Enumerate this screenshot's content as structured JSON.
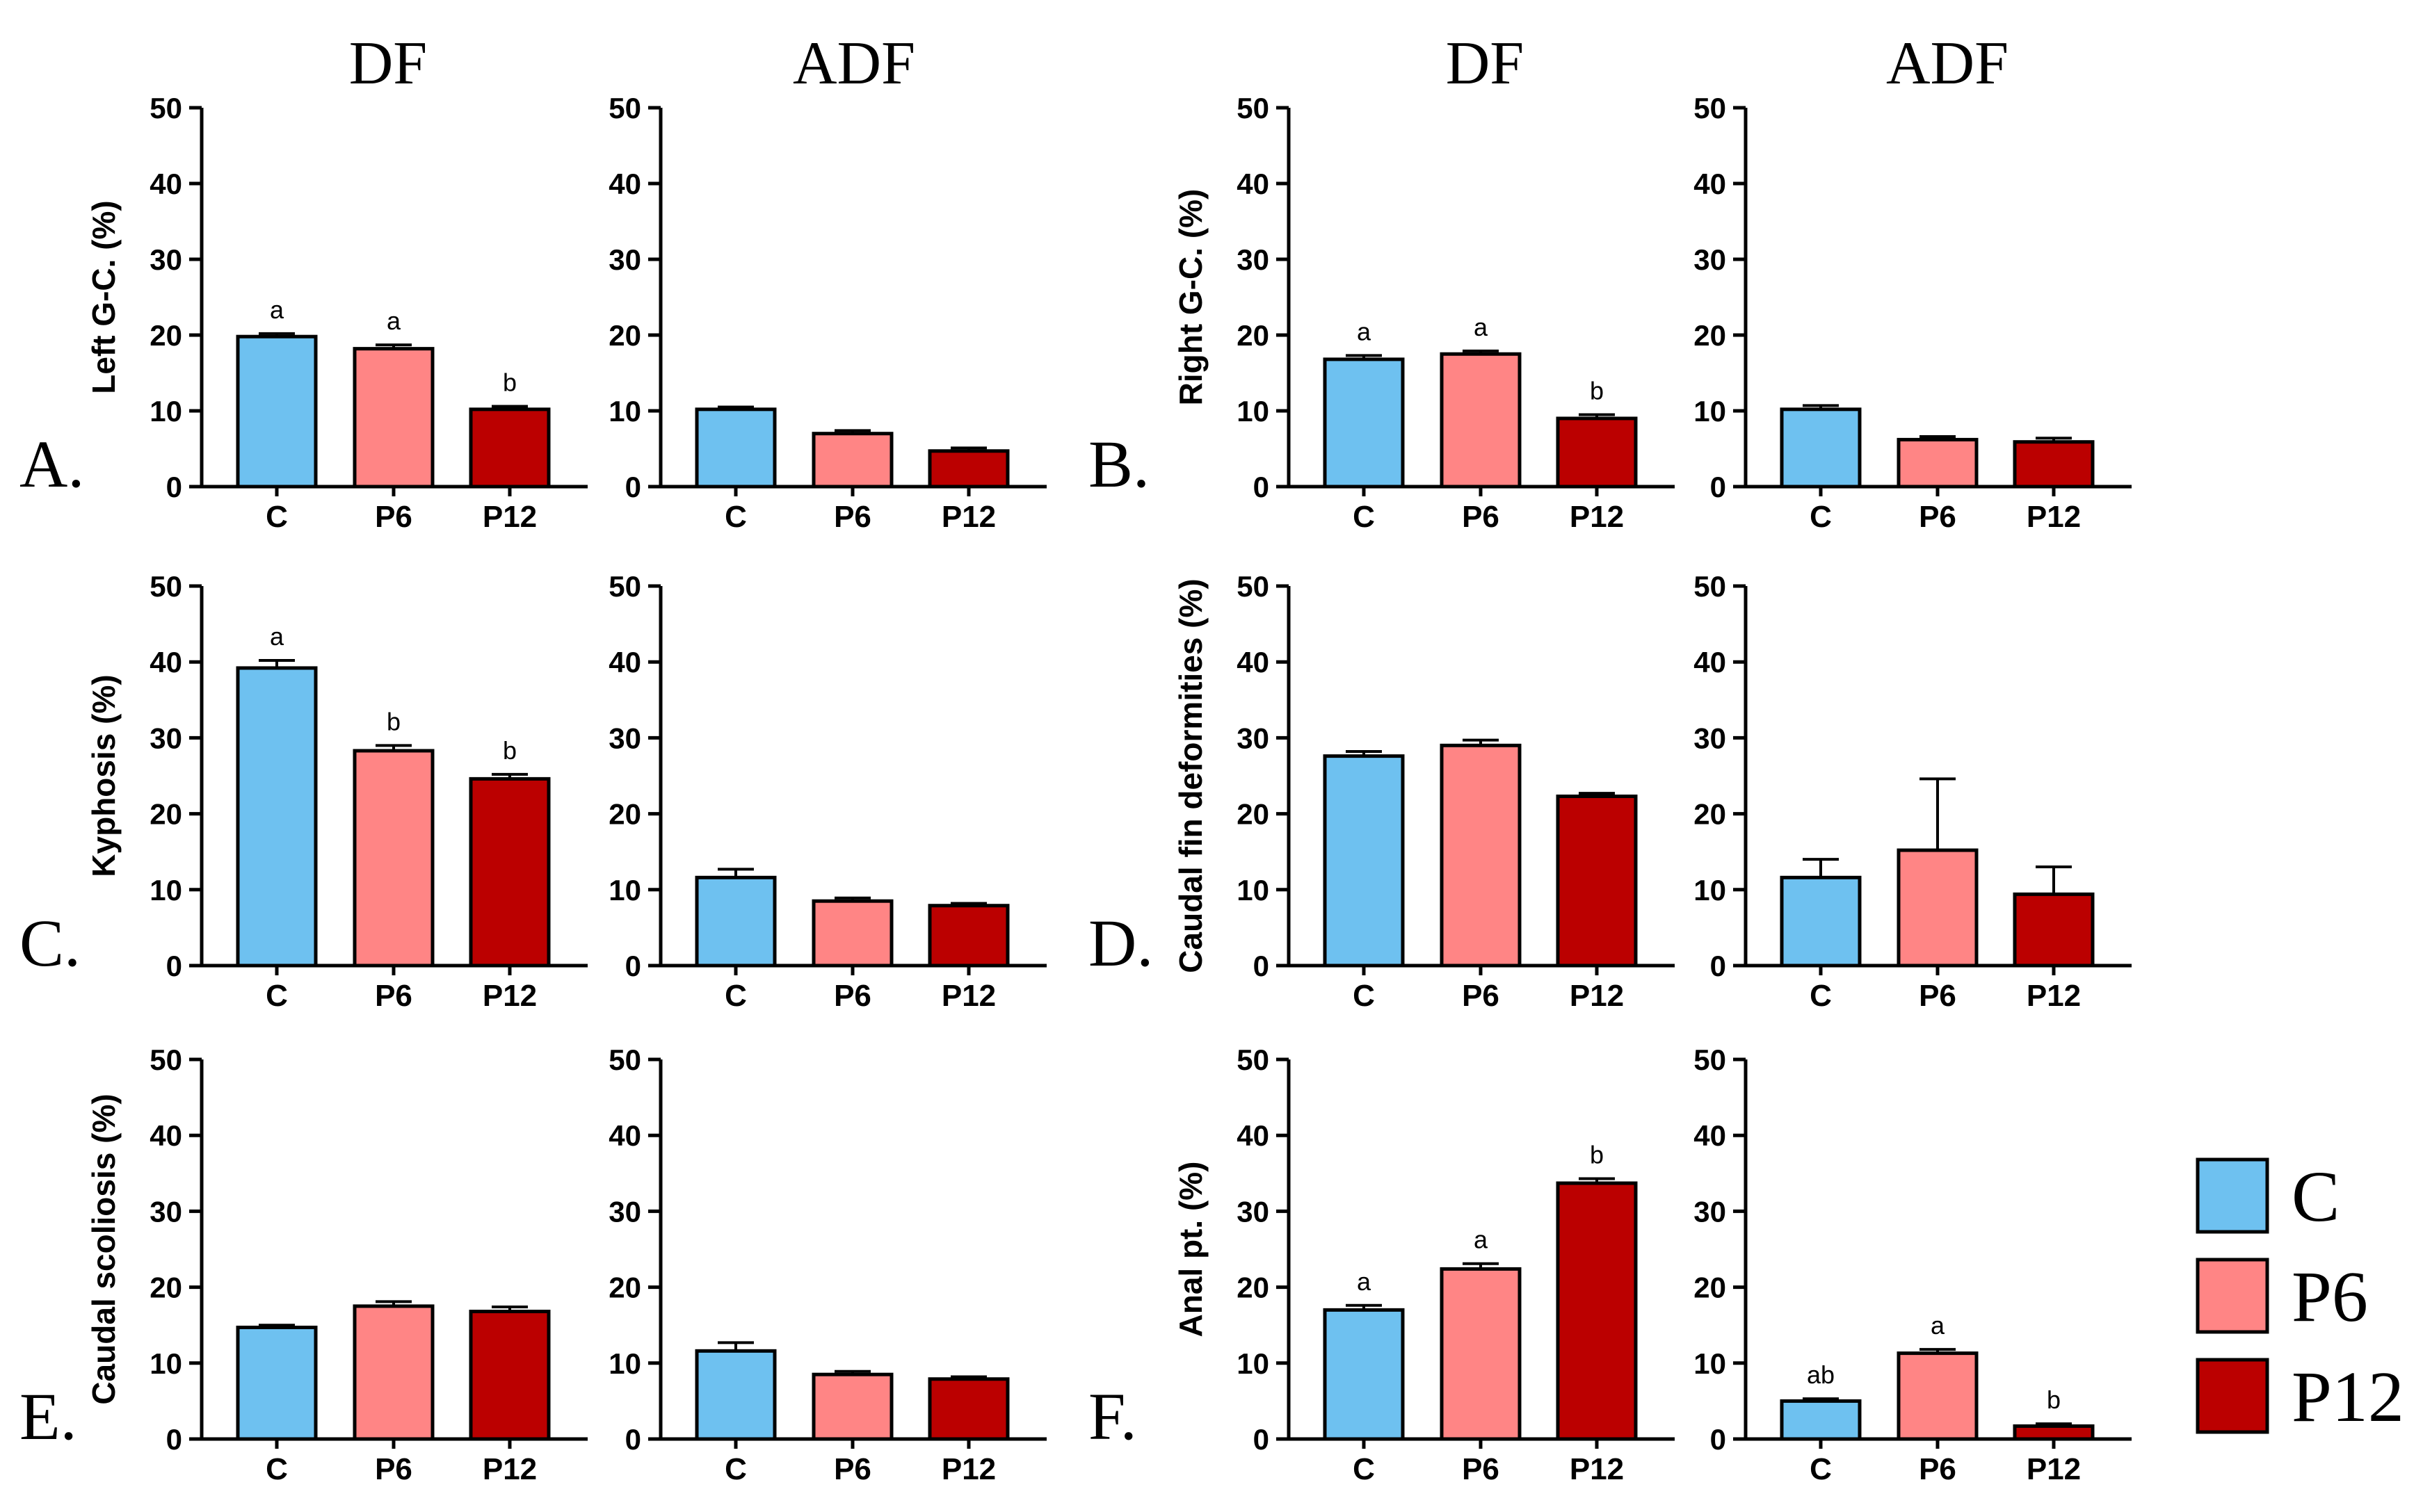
{
  "figure": {
    "column_titles": [
      "DF",
      "ADF",
      "DF",
      "ADF"
    ],
    "legend": [
      {
        "label": "C",
        "color": "#6ec1f0"
      },
      {
        "label": "P6",
        "color": "#ff8585"
      },
      {
        "label": "P12",
        "color": "#bb0000"
      }
    ]
  },
  "chart_data": [
    {
      "type": "bar",
      "panel": "A.",
      "group": "DF",
      "ylabel": "Left G-C. (%)",
      "categories": [
        "C",
        "P6",
        "P12"
      ],
      "values": [
        19.8,
        18.2,
        10.2
      ],
      "errors": [
        0.4,
        0.5,
        0.4
      ],
      "sig": [
        "a",
        "a",
        "b"
      ],
      "ylim": [
        0,
        50
      ],
      "yticks": [
        0,
        10,
        20,
        30,
        40,
        50
      ]
    },
    {
      "type": "bar",
      "panel": "A.",
      "group": "ADF",
      "ylabel": "",
      "categories": [
        "C",
        "P6",
        "P12"
      ],
      "values": [
        10.2,
        7.0,
        4.7
      ],
      "errors": [
        0.3,
        0.4,
        0.4
      ],
      "sig": [
        "",
        "",
        ""
      ],
      "ylim": [
        0,
        50
      ],
      "yticks": [
        0,
        10,
        20,
        30,
        40,
        50
      ]
    },
    {
      "type": "bar",
      "panel": "B.",
      "group": "DF",
      "ylabel": "Right G-C. (%)",
      "categories": [
        "C",
        "P6",
        "P12"
      ],
      "values": [
        16.8,
        17.5,
        9.0
      ],
      "errors": [
        0.5,
        0.4,
        0.5
      ],
      "sig": [
        "a",
        "a",
        "b"
      ],
      "ylim": [
        0,
        50
      ],
      "yticks": [
        0,
        10,
        20,
        30,
        40,
        50
      ]
    },
    {
      "type": "bar",
      "panel": "B.",
      "group": "ADF",
      "ylabel": "",
      "categories": [
        "C",
        "P6",
        "P12"
      ],
      "values": [
        10.2,
        6.2,
        5.9
      ],
      "errors": [
        0.5,
        0.4,
        0.5
      ],
      "sig": [
        "",
        "",
        ""
      ],
      "ylim": [
        0,
        50
      ],
      "yticks": [
        0,
        10,
        20,
        30,
        40,
        50
      ]
    },
    {
      "type": "bar",
      "panel": "C.",
      "group": "DF",
      "ylabel": "Kyphosis (%)",
      "categories": [
        "C",
        "P6",
        "P12"
      ],
      "values": [
        39.2,
        28.3,
        24.6
      ],
      "errors": [
        1.0,
        0.7,
        0.6
      ],
      "sig": [
        "a",
        "b",
        "b"
      ],
      "ylim": [
        0,
        50
      ],
      "yticks": [
        0,
        10,
        20,
        30,
        40,
        50
      ]
    },
    {
      "type": "bar",
      "panel": "C.",
      "group": "ADF",
      "ylabel": "",
      "categories": [
        "C",
        "P6",
        "P12"
      ],
      "values": [
        11.6,
        8.5,
        7.9
      ],
      "errors": [
        1.1,
        0.4,
        0.3
      ],
      "sig": [
        "",
        "",
        ""
      ],
      "ylim": [
        0,
        50
      ],
      "yticks": [
        0,
        10,
        20,
        30,
        40,
        50
      ]
    },
    {
      "type": "bar",
      "panel": "D.",
      "group": "DF",
      "ylabel": "Caudal fin deformities (%)",
      "categories": [
        "C",
        "P6",
        "P12"
      ],
      "values": [
        27.6,
        29.0,
        22.3
      ],
      "errors": [
        0.6,
        0.7,
        0.4
      ],
      "sig": [
        "",
        "",
        ""
      ],
      "ylim": [
        0,
        50
      ],
      "yticks": [
        0,
        10,
        20,
        30,
        40,
        50
      ]
    },
    {
      "type": "bar",
      "panel": "D.",
      "group": "ADF",
      "ylabel": "",
      "categories": [
        "C",
        "P6",
        "P12"
      ],
      "values": [
        11.6,
        15.2,
        9.4
      ],
      "errors": [
        2.4,
        9.4,
        3.6
      ],
      "sig": [
        "",
        "",
        ""
      ],
      "ylim": [
        0,
        50
      ],
      "yticks": [
        0,
        10,
        20,
        30,
        40,
        50
      ]
    },
    {
      "type": "bar",
      "panel": "E.",
      "group": "DF",
      "ylabel": "Caudal scoliosis (%)",
      "categories": [
        "C",
        "P6",
        "P12"
      ],
      "values": [
        14.7,
        17.5,
        16.8
      ],
      "errors": [
        0.3,
        0.6,
        0.6
      ],
      "sig": [
        "",
        "",
        ""
      ],
      "ylim": [
        0,
        50
      ],
      "yticks": [
        0,
        10,
        20,
        30,
        40,
        50
      ]
    },
    {
      "type": "bar",
      "panel": "E.",
      "group": "ADF",
      "ylabel": "",
      "categories": [
        "C",
        "P6",
        "P12"
      ],
      "values": [
        11.6,
        8.5,
        7.9
      ],
      "errors": [
        1.1,
        0.4,
        0.3
      ],
      "sig": [
        "",
        "",
        ""
      ],
      "ylim": [
        0,
        50
      ],
      "yticks": [
        0,
        10,
        20,
        30,
        40,
        50
      ]
    },
    {
      "type": "bar",
      "panel": "F.",
      "group": "DF",
      "ylabel": "Anal pt. (%)",
      "categories": [
        "C",
        "P6",
        "P12"
      ],
      "values": [
        17.0,
        22.4,
        33.7
      ],
      "errors": [
        0.6,
        0.7,
        0.6
      ],
      "sig": [
        "a",
        "a",
        "b"
      ],
      "ylim": [
        0,
        50
      ],
      "yticks": [
        0,
        10,
        20,
        30,
        40,
        50
      ]
    },
    {
      "type": "bar",
      "panel": "F.",
      "group": "ADF",
      "ylabel": "",
      "categories": [
        "C",
        "P6",
        "P12"
      ],
      "values": [
        5.0,
        11.3,
        1.7
      ],
      "errors": [
        0.3,
        0.5,
        0.3
      ],
      "sig": [
        "ab",
        "a",
        "b"
      ],
      "ylim": [
        0,
        50
      ],
      "yticks": [
        0,
        10,
        20,
        30,
        40,
        50
      ]
    }
  ]
}
